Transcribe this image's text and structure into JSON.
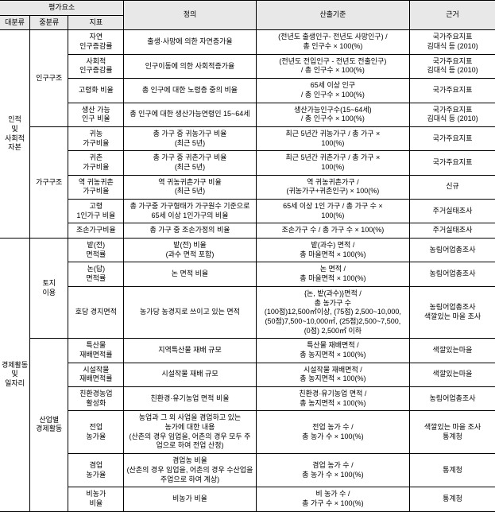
{
  "headers": {
    "group": "평가요소",
    "l1": "대분류",
    "l2": "중분류",
    "l3": "지표",
    "def": "정의",
    "calc": "산출기준",
    "basis": "근거"
  },
  "l1": {
    "a": "인적\n및\n사회적\n자본",
    "b": "경제활동\n및\n일자리"
  },
  "l2": {
    "a1": "인구구조",
    "a2": "가구구조",
    "b1": "토지\n이용",
    "b2": "산업별\n경제활동"
  },
  "rows": [
    {
      "l3": "자연\n인구증감률",
      "def": "출생·사망에 의한 자연증가율",
      "calc": "(전년도 출생인구- 전년도 사망인구) /\n총 인구수 × 100(%)",
      "basis": "국가주요지표\n김대식 등 (2010)"
    },
    {
      "l3": "사회적\n인구증감률",
      "def": "인구이동에 의한 사회적증가율",
      "calc": "(전년도 전입인구 - 전년도 전출인구)\n/ 총 인구수 × 100(%)",
      "basis": "국가주요지표\n김대식 등 (2010)"
    },
    {
      "l3": "고령화 비율",
      "def": "총 인구에 대한 노령층 중의 비율",
      "calc": "65세 이상 인구\n/ 총 인구수 × 100(%)",
      "basis": "국가주요지표"
    },
    {
      "l3": "생산 가능\n인구 비율",
      "def": "총 인구에 대한 생산가능연령인 15~64세",
      "calc": "생산가능인구수(15~64세)\n/ 총 인구수 × 100(%)",
      "basis": "국가주요지표\n김대식 등 (2010)"
    },
    {
      "l3": "귀농\n가구비율",
      "def": "총 가구 중 귀농가구 비율\n(최근 5년)",
      "calc": "최근 5년간 귀농가구 / 총 가구 ×\n100(%)",
      "basis": "국가주요지표"
    },
    {
      "l3": "귀촌\n가구비율",
      "def": "총 가구 중 귀촌가구 비율\n(최근 5년)",
      "calc": "최근 5년간 귀촌가구 / 총 가구 ×\n100(%)",
      "basis": "국가주요지표"
    },
    {
      "l3": "역 귀농귀촌\n가구비율",
      "def": "역 귀농귀촌가구 비율\n(최근 5년)",
      "calc": "역 귀농귀촌가구 /\n(귀농가구+귀촌인구) × 100(%)",
      "basis": "신규"
    },
    {
      "l3": "고령\n1인가구 비율",
      "def": "총 가구중 가구형태가 가구원수 기준으로\n65세 이상 1인가구의 비율",
      "calc": "65세 이상 1인 가구 / 총 가구 수 ×\n100(%)",
      "basis": "주거실태조사"
    },
    {
      "l3": "조손가구비율",
      "def": "총 가구 중 조손가정의 비율",
      "calc": "조손가구 수 / 총 가구 수 × 100(%)",
      "basis": "주거실태조사"
    },
    {
      "l3": "밭(전)\n면적률",
      "def": "밭(전) 비율\n(과수 면적 포함)",
      "calc": "밭(과수) 면적 /\n총 마을면적 × 100(%)",
      "basis": "농림어업총조사"
    },
    {
      "l3": "논(답)\n면적률",
      "def": "논 면적 비율",
      "calc": "논 면적 /\n총 마을면적 × 100(%)",
      "basis": "농림어업총조사"
    },
    {
      "l3": "호당 경지면적",
      "def": "농가당 농경지로 쓰이고 있는 면적",
      "calc": "{논, 밭(과수)}면적 /\n총 농가구 수\n(100점)12,500㎡이상, (75점) 2,500~10,000,\n(50점)7,500~10,000㎡, (25점)2,500~7,500,\n(0점) 2,500㎡ 이하",
      "basis": "농림어업총조사\n색깔있는 마을 조사"
    },
    {
      "l3": "특산물\n재배면적률",
      "def": "지역특산물 재배 규모",
      "calc": "특산물 재배면적 /\n총 농지면적 × 100(%)",
      "basis": "색깔있는마을"
    },
    {
      "l3": "시설작물\n재배면적률",
      "def": "시설작물 재배 규모",
      "calc": "시설작물 재배면적 /\n총 농지면적 × 100(%)",
      "basis": "색깔있는마을"
    },
    {
      "l3": "친환경농업\n활성화",
      "def": "친환경·유기농업 면적 비율",
      "calc": "친환경·유기농업 면적 /\n총 농지면적 × 100(%)",
      "basis": "농림어업총조사"
    },
    {
      "l3": "전업\n농가율",
      "def": "농업과 그 외 사업을 겸업하고 있는\n농가에 대한 내용\n(산촌의 경우 임업을, 어촌의 경우 모두 주\n업으로 하여 전업 산정)",
      "calc": "전업 농가 수 /\n총 농가 수 × 100(%)",
      "basis": "색깔있는 마을 조사\n통계청"
    },
    {
      "l3": "겸업\n농가율",
      "def": "겸업농 비율\n(산촌의 경우 임업을, 어촌의 경우 수산업을\n주업으로 하여 계상)",
      "calc": "겸업 농가 수 /\n총 농가 수 × 100(%)",
      "basis": "통계청"
    },
    {
      "l3": "비농가\n비율",
      "def": "비농가 비율",
      "calc": "비 농가 수 /\n총 가구 수 × 100(%)",
      "basis": "통계청"
    }
  ]
}
